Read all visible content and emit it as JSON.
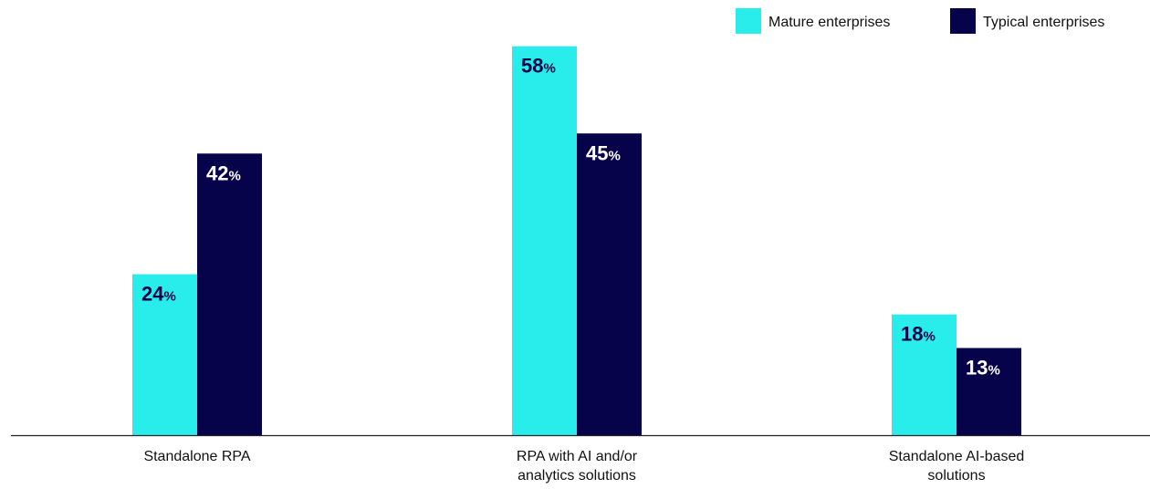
{
  "colors": {
    "mature": "#29EDEA",
    "typical": "#07034A",
    "axis": "#222222",
    "text": "#111111",
    "label_on_light": "#07034A",
    "label_on_dark": "#FFFFFF"
  },
  "chart_data": {
    "type": "bar",
    "title": "",
    "xlabel": "",
    "ylabel": "",
    "ylim": [
      0,
      62
    ],
    "grid": false,
    "legend_position": "top-right",
    "categories": [
      "Standalone RPA",
      "RPA with AI and/or analytics solutions",
      "Standalone AI-based solutions"
    ],
    "category_lines": [
      [
        "Standalone RPA"
      ],
      [
        "RPA with AI and/or",
        "analytics solutions"
      ],
      [
        "Standalone AI-based",
        "solutions"
      ]
    ],
    "unit_suffix": "%",
    "series": [
      {
        "name": "Mature enterprises",
        "values": [
          24,
          58,
          18
        ]
      },
      {
        "name": "Typical enterprises",
        "values": [
          42,
          45,
          13
        ]
      }
    ]
  }
}
